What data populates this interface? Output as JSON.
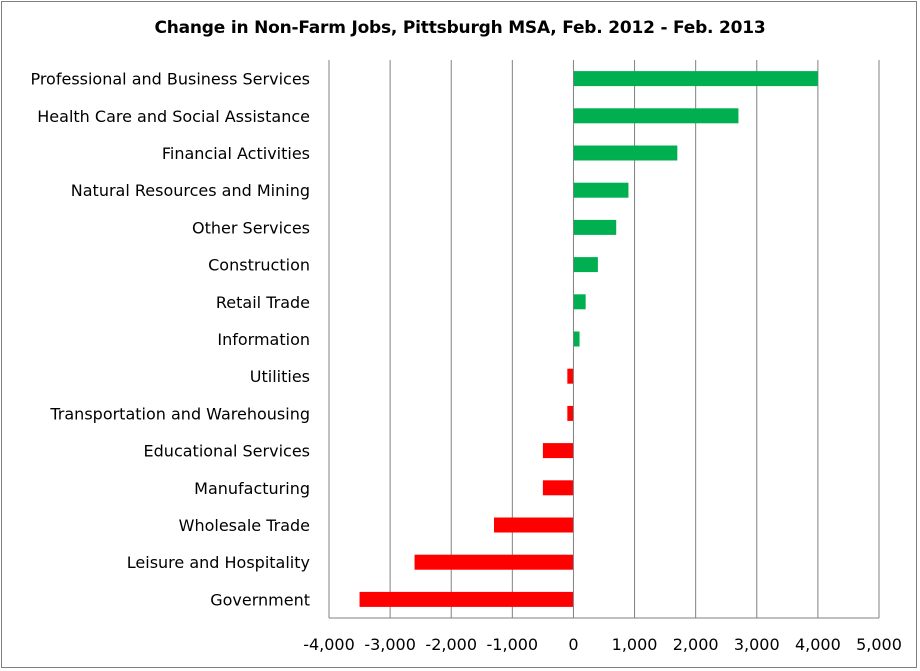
{
  "chart_data": {
    "type": "bar",
    "orientation": "horizontal",
    "title": "Change in Non-Farm Jobs, Pittsburgh MSA, Feb. 2012 - Feb. 2013",
    "xlabel": "",
    "ylabel": "",
    "xlim": [
      -4000,
      5000
    ],
    "x_ticks": [
      -4000,
      -3000,
      -2000,
      -1000,
      0,
      1000,
      2000,
      3000,
      4000,
      5000
    ],
    "x_tick_labels": [
      "-4,000",
      "-3,000",
      "-2,000",
      "-1,000",
      "0",
      "1,000",
      "2,000",
      "3,000",
      "4,000",
      "5,000"
    ],
    "grid": "vertical",
    "legend": "none",
    "categories": [
      "Professional and Business Services",
      "Health Care and Social Assistance",
      "Financial Activities",
      "Natural Resources  and Mining",
      "Other Services",
      "Construction",
      "Retail Trade",
      "Information",
      "Utilities",
      "Transportation and Warehousing",
      "Educational Services",
      "Manufacturing",
      "Wholesale Trade",
      "Leisure and Hospitality",
      "Government"
    ],
    "values": [
      4000,
      2700,
      1700,
      900,
      700,
      400,
      200,
      100,
      -100,
      -100,
      -500,
      -500,
      -1300,
      -2600,
      -3500
    ],
    "colors": {
      "positive": "#00b050",
      "negative": "#ff0000",
      "grid": "#808080",
      "axis": "#808080"
    }
  }
}
